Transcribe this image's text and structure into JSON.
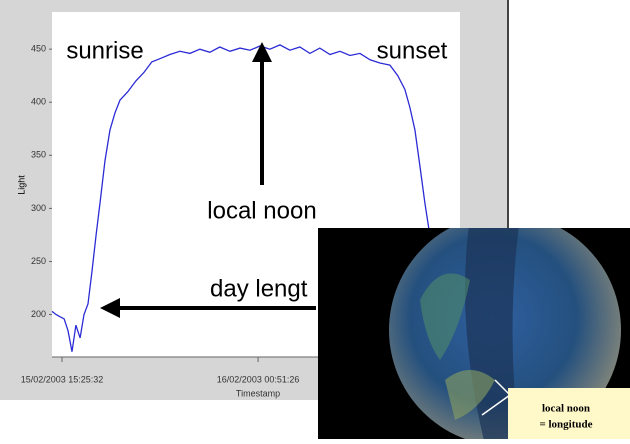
{
  "chart_data": {
    "type": "line",
    "y_label": "Light",
    "x_label": "Timestamp",
    "annotations": [
      "sunrise",
      "sunset",
      "local noon",
      "day lengt"
    ],
    "x": [
      14.95,
      15.14,
      15.33,
      15.53,
      15.72,
      15.91,
      16.1,
      16.3,
      16.49,
      16.68,
      16.87,
      17.07,
      17.26,
      17.5,
      17.74,
      17.98,
      18.22,
      18.6,
      18.98,
      19.37,
      19.75,
      20.14,
      20.62,
      21.1,
      21.58,
      22.06,
      22.54,
      23.02,
      23.51,
      23.99,
      24.47,
      24.95,
      25.43,
      25.91,
      26.39,
      26.87,
      27.35,
      27.83,
      28.32,
      28.8,
      29.28,
      29.76,
      30.24,
      30.72,
      31.2,
      31.58,
      31.92,
      32.16,
      32.4,
      32.64,
      32.88,
      33.12
    ],
    "series": [
      {
        "color": "#2b2bd6",
        "values": [
          203,
          200,
          198,
          196,
          185,
          165,
          190,
          178,
          200,
          210,
          240,
          275,
          305,
          345,
          374,
          390,
          402,
          410,
          420,
          428,
          438,
          441,
          445,
          448,
          446,
          450,
          447,
          452,
          448,
          451,
          449,
          453,
          450,
          454,
          449,
          452,
          446,
          451,
          445,
          448,
          444,
          446,
          440,
          437,
          435,
          425,
          412,
          395,
          374,
          340,
          305,
          275
        ]
      }
    ],
    "xlim": [
      14.95,
      34.57
    ],
    "ylim": [
      160,
      485
    ],
    "yticks": [
      200,
      250,
      300,
      350,
      400,
      450
    ],
    "xticks": [
      {
        "value": 15.43,
        "label": "15/02/2003 15:25:32"
      },
      {
        "value": 24.86,
        "label": "16/02/2003 00:51:26"
      }
    ]
  },
  "inset": {
    "label_lines": [
      "local noon",
      "= longitude"
    ]
  }
}
